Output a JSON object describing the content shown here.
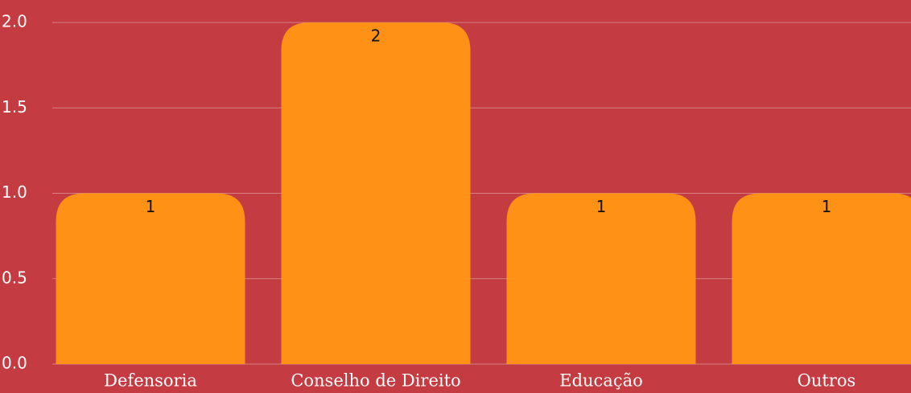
{
  "chart_data": {
    "type": "bar",
    "categories": [
      "Defensoria",
      "Conselho de Direito",
      "Educação",
      "Outros"
    ],
    "values": [
      1,
      2,
      1,
      1
    ],
    "color": "#ff9116",
    "background": "#c43b41",
    "ylim": [
      0,
      2
    ],
    "yticks": [
      {
        "value": 0,
        "label": "0.0"
      },
      {
        "value": 0.5,
        "label": "0.5"
      },
      {
        "value": 1,
        "label": "1.0"
      },
      {
        "value": 1.5,
        "label": "1.5"
      },
      {
        "value": 2,
        "label": "2.0"
      }
    ],
    "grid": true
  }
}
